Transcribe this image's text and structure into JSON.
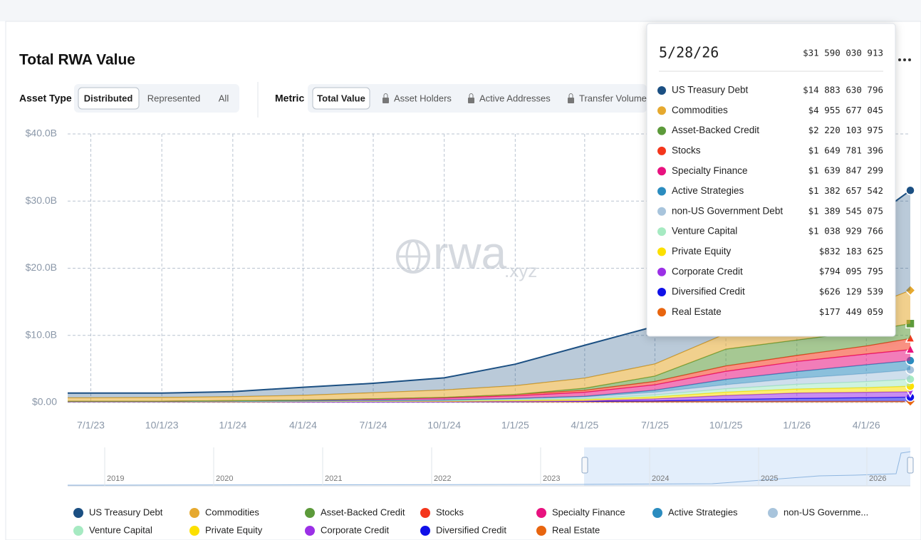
{
  "header": {
    "title": "Total RWA Value"
  },
  "controls": {
    "asset_type_label": "Asset Type",
    "asset_type_options": [
      "Distributed",
      "Represented",
      "All"
    ],
    "metric_label": "Metric",
    "metric_options": [
      "Total Value",
      "Asset Holders",
      "Active Addresses",
      "Transfer Volume"
    ]
  },
  "watermark": {
    "main": "rwa",
    "suffix": ".xyz"
  },
  "chart_data": {
    "type": "stacked_area",
    "x": [
      "6/1/23",
      "7/1/23",
      "10/1/23",
      "1/1/24",
      "4/1/24",
      "7/1/24",
      "10/1/24",
      "1/1/25",
      "4/1/25",
      "7/1/25",
      "10/1/25",
      "1/1/26",
      "4/1/26",
      "5/28/26"
    ],
    "xlim": [
      "6/1/23",
      "5/28/26"
    ],
    "xticks": [
      "7/1/23",
      "10/1/23",
      "1/1/24",
      "4/1/24",
      "7/1/24",
      "10/1/24",
      "1/1/25",
      "4/1/25",
      "7/1/25",
      "10/1/25",
      "1/1/26",
      "4/1/26"
    ],
    "ylim": [
      0,
      40
    ],
    "yticks": [
      {
        "value": 0,
        "label": "$0.00"
      },
      {
        "value": 10,
        "label": "$10.0B"
      },
      {
        "value": 20,
        "label": "$20.0B"
      },
      {
        "value": 30,
        "label": "$30.0B"
      },
      {
        "value": 40,
        "label": "$40.0B"
      }
    ],
    "grid": true,
    "series": [
      {
        "name": "US Treasury Debt",
        "color": "#1b4f82",
        "values": [
          0.7,
          0.7,
          0.65,
          0.75,
          1.2,
          1.4,
          1.8,
          3.2,
          4.9,
          5.6,
          7.0,
          10.3,
          12.7,
          14.884
        ]
      },
      {
        "name": "Commodities",
        "color": "#e6a92f",
        "values": [
          0.5,
          0.5,
          0.55,
          0.6,
          0.7,
          0.9,
          1.1,
          1.3,
          1.5,
          1.8,
          2.3,
          2.6,
          3.5,
          4.956
        ]
      },
      {
        "name": "Asset-Backed Credit",
        "color": "#5c9a3a",
        "values": [
          0,
          0,
          0,
          0,
          0,
          0,
          0,
          0,
          0.3,
          0.8,
          2.5,
          2.3,
          2.2,
          2.22
        ]
      },
      {
        "name": "Stocks",
        "color": "#f4361c",
        "values": [
          0,
          0,
          0,
          0,
          0.01,
          0.05,
          0.1,
          0.2,
          0.3,
          0.5,
          0.8,
          0.9,
          1.2,
          1.65
        ]
      },
      {
        "name": "Specialty Finance",
        "color": "#e8127f",
        "values": [
          0,
          0,
          0,
          0.05,
          0.1,
          0.2,
          0.3,
          0.4,
          0.6,
          0.8,
          1.2,
          1.5,
          1.6,
          1.64
        ]
      },
      {
        "name": "Active Strategies",
        "color": "#2b8cbf",
        "values": [
          0,
          0,
          0,
          0,
          0,
          0,
          0,
          0.05,
          0.1,
          0.3,
          0.8,
          1.0,
          1.3,
          1.383
        ]
      },
      {
        "name": "non-US Government Debt",
        "legend_name": "non-US Governme...",
        "color": "#a8c4dc",
        "values": [
          0.05,
          0.05,
          0.05,
          0.05,
          0.06,
          0.08,
          0.1,
          0.15,
          0.25,
          0.4,
          0.6,
          0.9,
          1.2,
          1.39
        ]
      },
      {
        "name": "Venture Capital",
        "color": "#a6eac2",
        "values": [
          0.02,
          0.02,
          0.02,
          0.03,
          0.04,
          0.05,
          0.06,
          0.1,
          0.15,
          0.3,
          0.5,
          0.7,
          0.9,
          1.039
        ]
      },
      {
        "name": "Private Equity",
        "color": "#fce000",
        "values": [
          0.05,
          0.05,
          0.05,
          0.05,
          0.06,
          0.08,
          0.1,
          0.15,
          0.2,
          0.3,
          0.5,
          0.6,
          0.7,
          0.832
        ]
      },
      {
        "name": "Corporate Credit",
        "color": "#9b30e6",
        "values": [
          0,
          0,
          0,
          0,
          0,
          0,
          0,
          0.02,
          0.05,
          0.3,
          0.6,
          0.8,
          0.8,
          0.794
        ]
      },
      {
        "name": "Diversified Credit",
        "color": "#1010e8",
        "values": [
          0,
          0,
          0,
          0,
          0,
          0,
          0,
          0.02,
          0.05,
          0.1,
          0.3,
          0.45,
          0.55,
          0.626
        ]
      },
      {
        "name": "Real Estate",
        "color": "#e8650f",
        "values": [
          0.08,
          0.08,
          0.08,
          0.09,
          0.1,
          0.1,
          0.11,
          0.12,
          0.13,
          0.14,
          0.15,
          0.16,
          0.17,
          0.177
        ]
      }
    ]
  },
  "tooltip": {
    "date": "5/28/26",
    "total": "$31 590 030 913",
    "values": [
      "$14 883 630 796",
      "$4 955 677 045",
      "$2 220 103 975",
      "$1 649 781 396",
      "$1 639 847 299",
      "$1 382 657 542",
      "$1 389 545 075",
      "$1 038 929 766",
      "$832 183 625",
      "$794 095 795",
      "$626 129 539",
      "$177 449 059"
    ]
  },
  "navigator": {
    "labels": [
      "2019",
      "2020",
      "2021",
      "2022",
      "2023",
      "2024",
      "2025",
      "2026"
    ]
  }
}
